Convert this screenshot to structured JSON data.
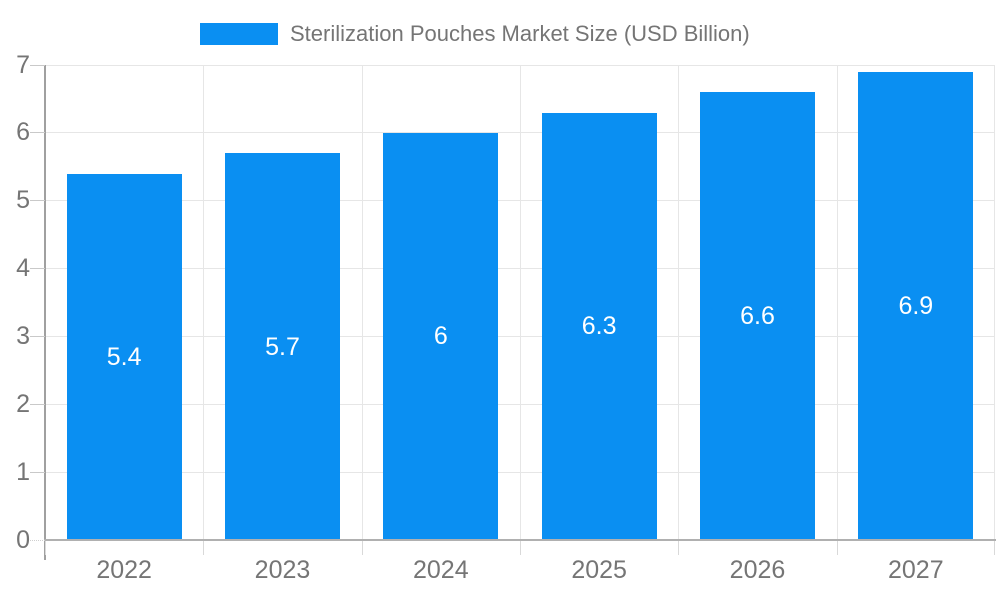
{
  "chart_data": {
    "type": "bar",
    "title": "Sterilization Pouches Market Size (USD Billion)",
    "legend": {
      "label": "Sterilization Pouches Market Size (USD Billion)",
      "position": "top"
    },
    "categories": [
      "2022",
      "2023",
      "2024",
      "2025",
      "2026",
      "2027"
    ],
    "values": [
      5.4,
      5.7,
      6,
      6.3,
      6.6,
      6.9
    ],
    "bar_labels": [
      "5.4",
      "5.7",
      "6",
      "6.3",
      "6.6",
      "6.9"
    ],
    "xlabel": "",
    "ylabel": "",
    "ylim": [
      0,
      7
    ],
    "yticks": [
      "0",
      "1",
      "2",
      "3",
      "4",
      "5",
      "6",
      "7"
    ],
    "grid": true,
    "bar_labels_visible": true,
    "colors": {
      "bar": "#0a8ff2",
      "bar_label": "#ffffff",
      "axis_text": "#757575",
      "grid": "#e6e6e6",
      "y_axis_line": "#a0a0a0",
      "x_axis_line": "#b0b0b0"
    }
  }
}
